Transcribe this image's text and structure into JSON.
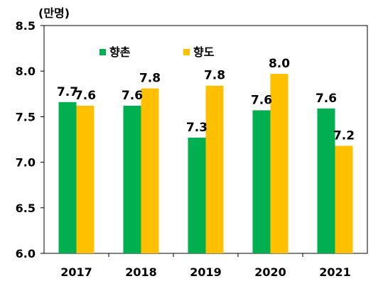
{
  "chart_data": {
    "type": "bar",
    "unit_label": "(만명)",
    "title": "",
    "xlabel": "",
    "ylabel": "",
    "categories": [
      "2017",
      "2018",
      "2019",
      "2020",
      "2021"
    ],
    "series": [
      {
        "name": "향촌",
        "color": "#00b050",
        "values": [
          7.66,
          7.62,
          7.27,
          7.57,
          7.59
        ],
        "labels": [
          "7.7",
          "7.6",
          "7.3",
          "7.6",
          "7.6"
        ]
      },
      {
        "name": "향도",
        "color": "#ffc000",
        "values": [
          7.62,
          7.81,
          7.84,
          7.97,
          7.18
        ],
        "labels": [
          "7.6",
          "7.8",
          "7.8",
          "8.0",
          "7.2"
        ]
      }
    ],
    "ylim": [
      6.0,
      8.5
    ],
    "yticks": [
      "6.0",
      "6.5",
      "7.0",
      "7.5",
      "8.0",
      "8.5"
    ],
    "legend_position": "top-left",
    "grid": false
  }
}
